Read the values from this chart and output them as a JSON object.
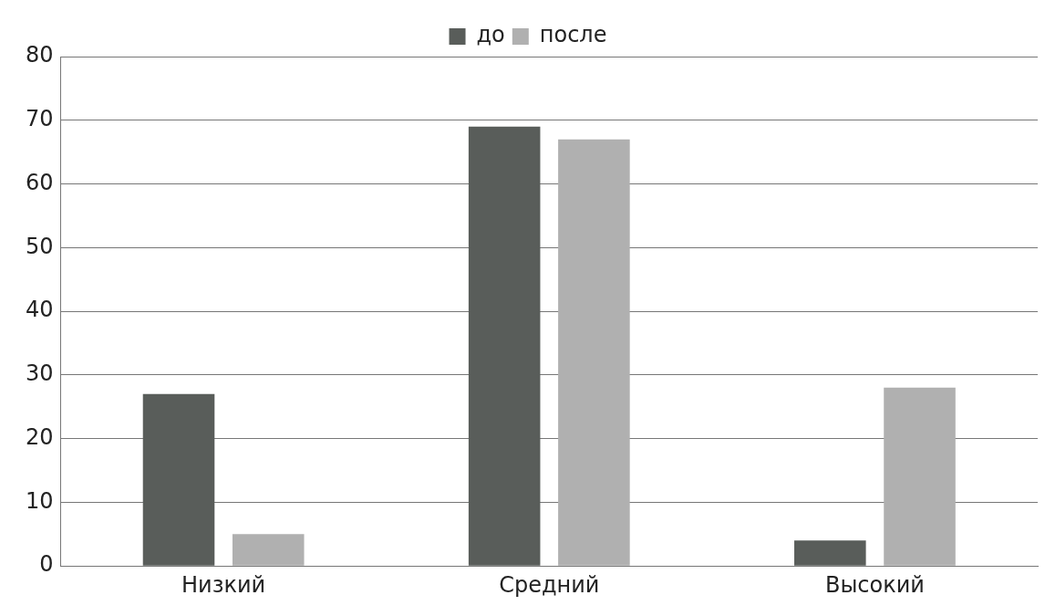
{
  "chart_data": {
    "type": "bar",
    "categories": [
      "Низкий",
      "Средний",
      "Высокий"
    ],
    "series": [
      {
        "name": "до",
        "color": "#595d5a",
        "values": [
          27,
          69,
          4
        ]
      },
      {
        "name": "после",
        "color": "#b0b0b0",
        "values": [
          5,
          67,
          28
        ]
      }
    ],
    "ylim": [
      0,
      80
    ],
    "yticks": [
      0,
      10,
      20,
      30,
      40,
      50,
      60,
      70,
      80
    ],
    "grid": "y",
    "legend": "top"
  }
}
